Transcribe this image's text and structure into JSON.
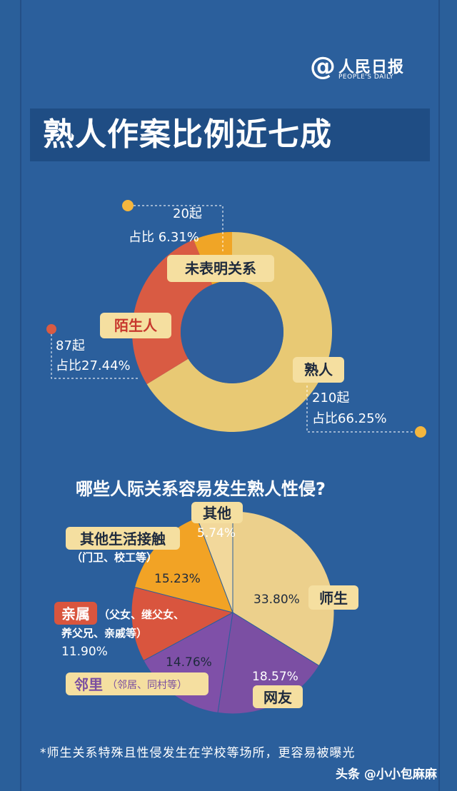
{
  "header": {
    "logo_cn": "人民日报",
    "logo_en": "PEOPLE'S DAILY",
    "title": "熟人作案比例近七成"
  },
  "colors": {
    "background": "#2b5f9c",
    "title_bg": "#1f4d84",
    "acquaintance": "#e8c974",
    "stranger": "#d95b43",
    "unspecified": "#f0a526",
    "teacher": "#ecd08c",
    "netfriend": "#7b4fa3",
    "neighbor": "#7f50a8",
    "relative": "#d9553e",
    "otherlife": "#f2a325",
    "other": "#f2d89b",
    "label_bg": "#f5dfa0",
    "dot": "#f4b63e"
  },
  "chart_data": [
    {
      "type": "pie",
      "variant": "donut",
      "title": "",
      "series": [
        {
          "name": "熟人",
          "count_label": "210起",
          "pct_label": "占比66.25%",
          "value": 66.25
        },
        {
          "name": "陌生人",
          "count_label": "87起",
          "pct_label": "占比27.44%",
          "value": 27.44
        },
        {
          "name": "未表明关系",
          "count_label": "20起",
          "pct_label": "占比 6.31%",
          "value": 6.31
        }
      ]
    },
    {
      "type": "pie",
      "title": "哪些人际关系容易发生熟人性侵?",
      "series": [
        {
          "name": "师生",
          "pct_label": "33.80%",
          "value": 33.8
        },
        {
          "name": "网友",
          "pct_label": "18.57%",
          "value": 18.57
        },
        {
          "name": "邻里",
          "sub": "（邻居、同村等）",
          "pct_label": "14.76%",
          "value": 14.76
        },
        {
          "name": "亲属",
          "sub": "（父女、继父女、",
          "sub2": "养父兄、亲戚等）",
          "pct_label": "11.90%",
          "value": 11.9
        },
        {
          "name": "其他生活接触",
          "sub": "（门卫、校工等）",
          "pct_label": "15.23%",
          "value": 15.23
        },
        {
          "name": "其他",
          "pct_label": "5.74%",
          "value": 5.74
        }
      ]
    }
  ],
  "footnote": "*师生关系特殊且性侵发生在学校等场所，更容易被曝光",
  "watermark": "头条 @小小包麻麻"
}
